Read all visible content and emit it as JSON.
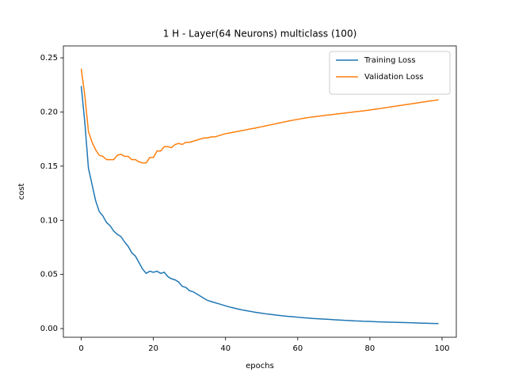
{
  "chart_data": {
    "type": "line",
    "title": "1 H - Layer(64 Neurons) multiclass (100)",
    "xlabel": "epochs",
    "ylabel": "cost",
    "x": [
      0,
      1,
      2,
      3,
      4,
      5,
      6,
      7,
      8,
      9,
      10,
      11,
      12,
      13,
      14,
      15,
      16,
      17,
      18,
      19,
      20,
      21,
      22,
      23,
      24,
      25,
      26,
      27,
      28,
      29,
      30,
      31,
      32,
      33,
      34,
      35,
      36,
      37,
      38,
      39,
      40,
      41,
      42,
      43,
      44,
      45,
      46,
      47,
      48,
      49,
      50,
      51,
      52,
      53,
      54,
      55,
      56,
      57,
      58,
      59,
      60,
      61,
      62,
      63,
      64,
      65,
      66,
      67,
      68,
      69,
      70,
      71,
      72,
      73,
      74,
      75,
      76,
      77,
      78,
      79,
      80,
      81,
      82,
      83,
      84,
      85,
      86,
      87,
      88,
      89,
      90,
      91,
      92,
      93,
      94,
      95,
      96,
      97,
      98,
      99
    ],
    "series": [
      {
        "name": "Training Loss",
        "color": "#1f77b4",
        "values": [
          0.224,
          0.19,
          0.148,
          0.133,
          0.118,
          0.108,
          0.104,
          0.098,
          0.095,
          0.09,
          0.087,
          0.085,
          0.08,
          0.076,
          0.07,
          0.067,
          0.061,
          0.055,
          0.051,
          0.053,
          0.052,
          0.053,
          0.051,
          0.052,
          0.048,
          0.046,
          0.045,
          0.043,
          0.039,
          0.038,
          0.035,
          0.034,
          0.032,
          0.03,
          0.028,
          0.026,
          0.025,
          0.024,
          0.023,
          0.022,
          0.021,
          0.02,
          0.0192,
          0.0184,
          0.0177,
          0.017,
          0.0164,
          0.0158,
          0.0152,
          0.0147,
          0.0142,
          0.0137,
          0.0133,
          0.0129,
          0.0125,
          0.0121,
          0.0117,
          0.0114,
          0.0111,
          0.0108,
          0.0105,
          0.0102,
          0.0099,
          0.0097,
          0.0094,
          0.0092,
          0.009,
          0.0088,
          0.0086,
          0.0084,
          0.0082,
          0.008,
          0.0078,
          0.0076,
          0.0075,
          0.0073,
          0.0071,
          0.007,
          0.0068,
          0.0067,
          0.0066,
          0.0064,
          0.0063,
          0.0062,
          0.0061,
          0.006,
          0.0059,
          0.0058,
          0.0057,
          0.0056,
          0.0055,
          0.0054,
          0.0053,
          0.0052,
          0.0051,
          0.005,
          0.0049,
          0.0048,
          0.0047,
          0.0046
        ]
      },
      {
        "name": "Validation Loss",
        "color": "#ff7f0e",
        "values": [
          0.24,
          0.215,
          0.182,
          0.172,
          0.165,
          0.16,
          0.159,
          0.156,
          0.156,
          0.156,
          0.16,
          0.161,
          0.159,
          0.159,
          0.156,
          0.156,
          0.154,
          0.153,
          0.153,
          0.158,
          0.158,
          0.164,
          0.164,
          0.168,
          0.168,
          0.167,
          0.17,
          0.171,
          0.17,
          0.172,
          0.172,
          0.173,
          0.174,
          0.175,
          0.176,
          0.176,
          0.177,
          0.177,
          0.178,
          0.179,
          0.18,
          0.1805,
          0.1812,
          0.1818,
          0.1825,
          0.1831,
          0.1838,
          0.1844,
          0.185,
          0.1857,
          0.1864,
          0.1871,
          0.1878,
          0.1885,
          0.1892,
          0.1899,
          0.1906,
          0.1913,
          0.192,
          0.1926,
          0.1932,
          0.1938,
          0.1944,
          0.1949,
          0.1954,
          0.1958,
          0.1962,
          0.1966,
          0.197,
          0.1974,
          0.1978,
          0.1982,
          0.1986,
          0.199,
          0.1994,
          0.1998,
          0.2002,
          0.2006,
          0.201,
          0.2014,
          0.2018,
          0.2023,
          0.2028,
          0.2033,
          0.2038,
          0.2043,
          0.2048,
          0.2053,
          0.2058,
          0.2063,
          0.2068,
          0.2073,
          0.2078,
          0.2083,
          0.2088,
          0.2093,
          0.2098,
          0.2103,
          0.2108,
          0.2113
        ]
      }
    ],
    "xlim": [
      -4.95,
      103.95
    ],
    "xticks": [
      0,
      20,
      40,
      60,
      80,
      100
    ],
    "ylim": [
      -0.008,
      0.261
    ],
    "yticks": [
      {
        "value": 0,
        "label": "0.00"
      },
      {
        "value": 0.05,
        "label": "0.05"
      },
      {
        "value": 0.1,
        "label": "0.10"
      },
      {
        "value": 0.15,
        "label": "0.15"
      },
      {
        "value": 0.2,
        "label": "0.20"
      },
      {
        "value": 0.25,
        "label": "0.25"
      }
    ],
    "legend": "upper right"
  }
}
